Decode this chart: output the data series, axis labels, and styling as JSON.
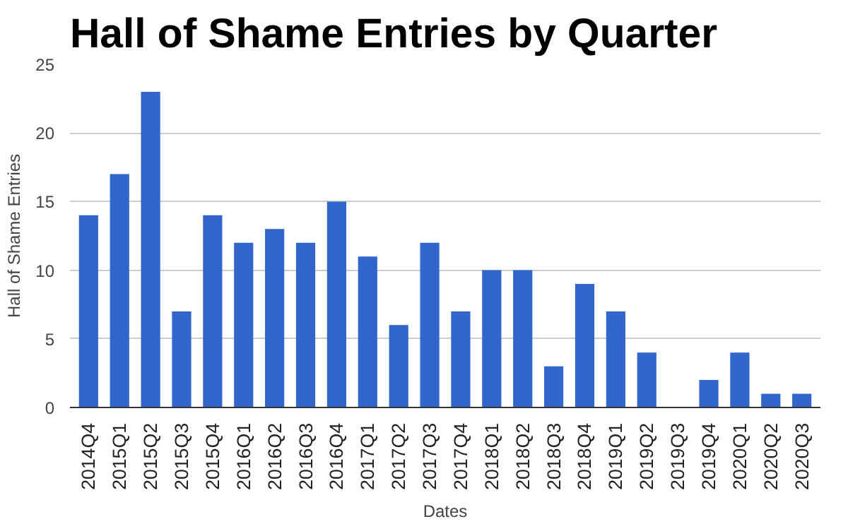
{
  "chart_data": {
    "type": "bar",
    "title": "Hall of Shame Entries by Quarter",
    "xlabel": "Dates",
    "ylabel": "Hall of Shame Entries",
    "categories": [
      "2014Q4",
      "2015Q1",
      "2015Q2",
      "2015Q3",
      "2015Q4",
      "2016Q1",
      "2016Q2",
      "2016Q3",
      "2016Q4",
      "2017Q1",
      "2017Q2",
      "2017Q3",
      "2017Q4",
      "2018Q1",
      "2018Q2",
      "2018Q3",
      "2018Q4",
      "2019Q1",
      "2019Q2",
      "2019Q3",
      "2019Q4",
      "2020Q1",
      "2020Q2",
      "2020Q3"
    ],
    "values": [
      14,
      17,
      23,
      7,
      14,
      12,
      13,
      12,
      15,
      11,
      6,
      12,
      7,
      10,
      10,
      3,
      9,
      7,
      4,
      0,
      2,
      4,
      1,
      1
    ],
    "color": "#3366cc",
    "ylim": [
      0,
      25
    ],
    "yticks": [
      0,
      5,
      10,
      15,
      20,
      25
    ],
    "grid": "y"
  }
}
